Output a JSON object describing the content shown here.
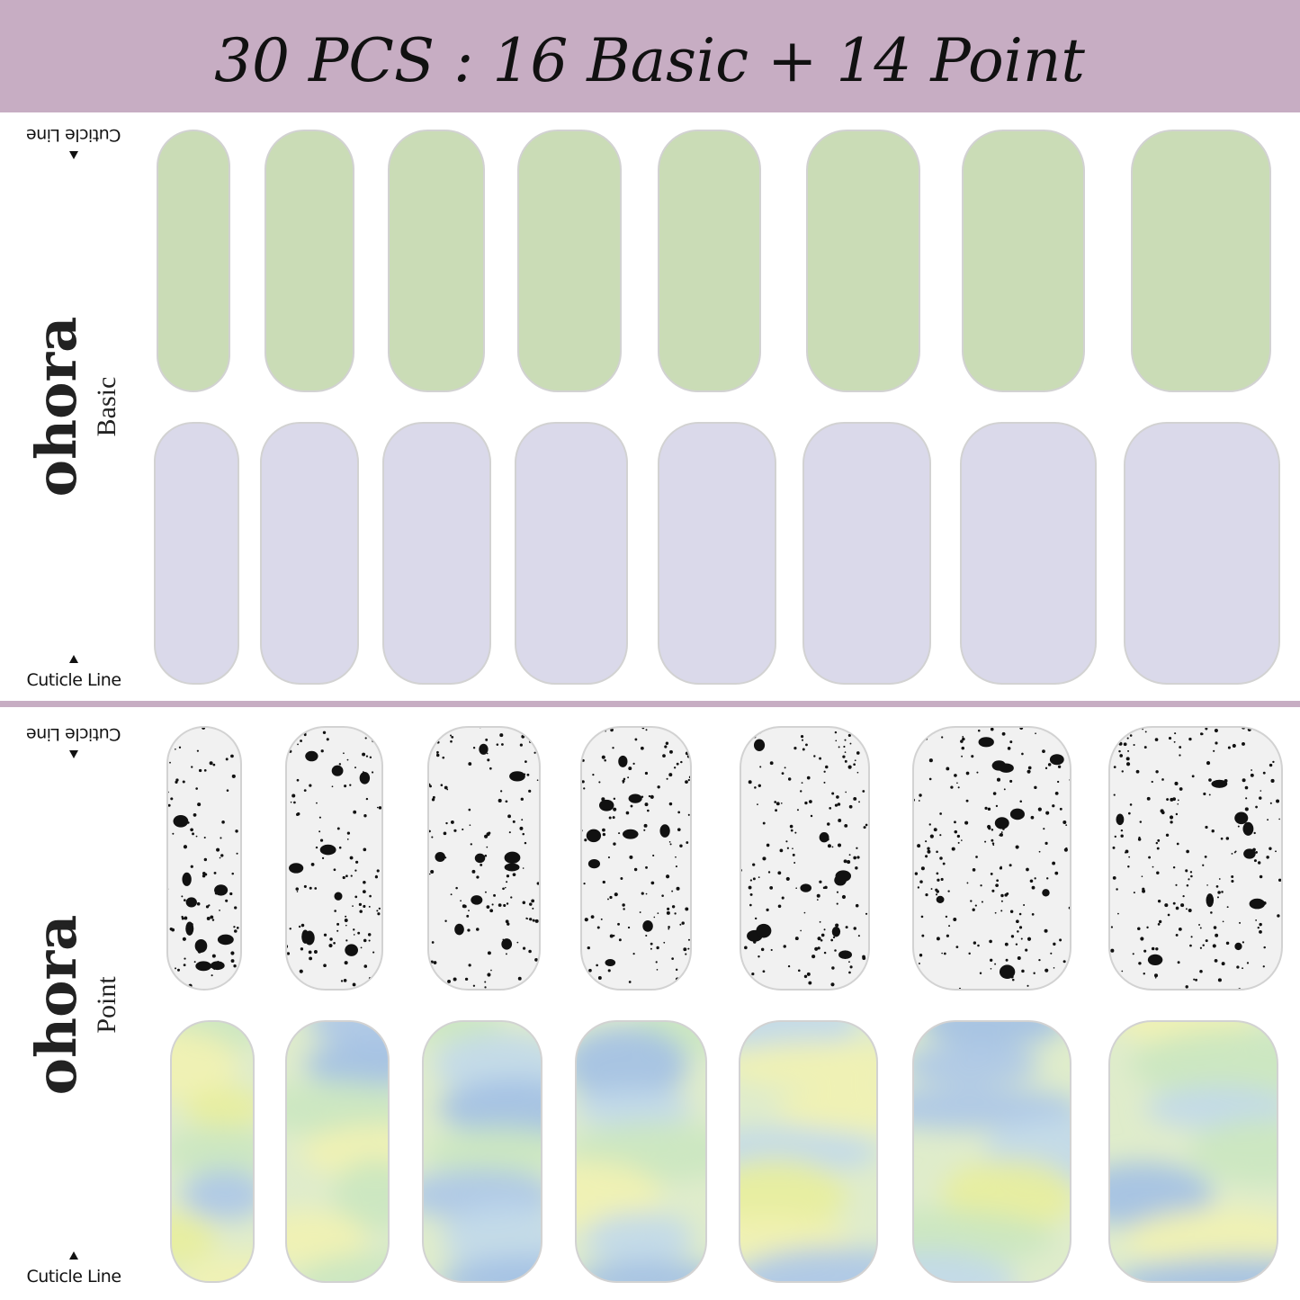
{
  "header": {
    "title": "30 PCS : 16 Basic + 14 Point"
  },
  "panels": [
    {
      "brand": "ohora",
      "label": "Basic",
      "cuticle_top": "Cuticle Line",
      "cuticle_bottom": "Cuticle Line"
    },
    {
      "brand": "ohora",
      "label": "Point",
      "cuticle_top": "Cuticle Line",
      "cuticle_bottom": "Cuticle Line"
    }
  ]
}
